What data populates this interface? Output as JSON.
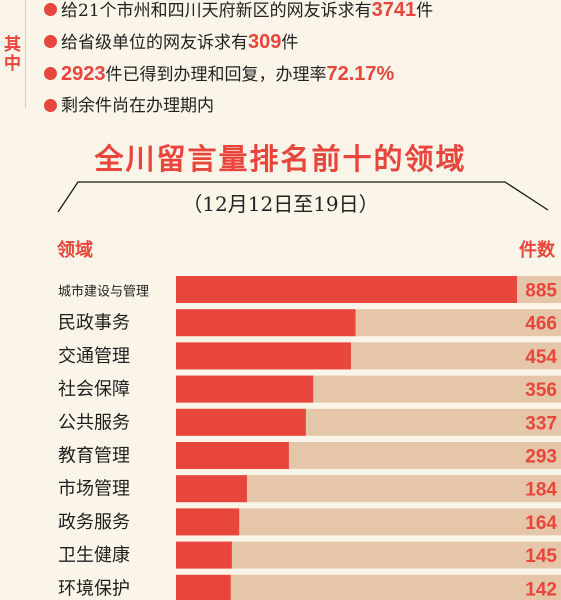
{
  "side_label": "其中",
  "bullets": [
    {
      "pre": "给21个市州和四川天府新区的网友诉求有",
      "num": "3741",
      "post": "件"
    },
    {
      "pre": "给省级单位的网友诉求有",
      "num": "309",
      "post": "件"
    },
    {
      "pre": "",
      "num": "2923",
      "post": "件已得到办理和回复，办理率",
      "num2": "72.17%"
    },
    {
      "pre": "剩余件尚在办理期内",
      "num": "",
      "post": ""
    }
  ],
  "colors": {
    "accent": "#e8453c",
    "bar_track": "#e5c6a8",
    "background": "#fbf5e9"
  },
  "chart_data": {
    "type": "bar",
    "orientation": "horizontal",
    "title": "全川留言量排名前十的领域",
    "subtitle": "（12月12日至19日）",
    "xlabel": "件数",
    "ylabel": "领域",
    "categories": [
      "城市建设与管理",
      "民政事务",
      "交通管理",
      "社会保障",
      "公共服务",
      "教育管理",
      "市场管理",
      "政务服务",
      "卫生健康",
      "环境保护"
    ],
    "values": [
      885,
      466,
      454,
      356,
      337,
      293,
      184,
      164,
      145,
      142
    ],
    "xlim": [
      0,
      1000
    ],
    "grid": false,
    "legend": "none"
  }
}
